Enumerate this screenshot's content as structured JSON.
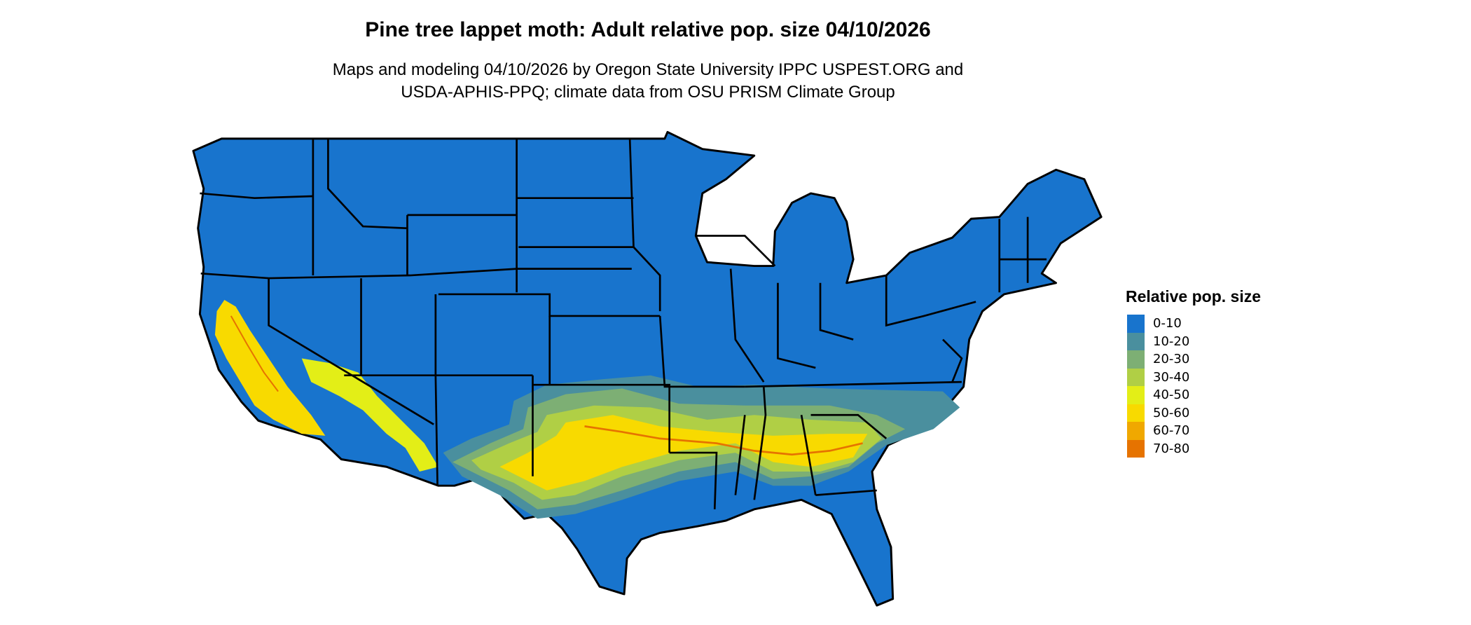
{
  "title": "Pine tree lappet moth: Adult relative pop. size 04/10/2026",
  "subtitle_line1": "Maps and modeling 04/10/2026 by Oregon State University IPPC USPEST.ORG and",
  "subtitle_line2": "USDA-APHIS-PPQ; climate data from OSU PRISM Climate Group",
  "legend": {
    "title": "Relative pop. size",
    "items": [
      {
        "label": "0-10",
        "color": "#1874CD"
      },
      {
        "label": "10-20",
        "color": "#4A8F9E"
      },
      {
        "label": "20-30",
        "color": "#7DAF74"
      },
      {
        "label": "30-40",
        "color": "#B0CF45"
      },
      {
        "label": "40-50",
        "color": "#E3EE17"
      },
      {
        "label": "50-60",
        "color": "#F8DA00"
      },
      {
        "label": "60-70",
        "color": "#F0A800"
      },
      {
        "label": "70-80",
        "color": "#E67300"
      }
    ]
  },
  "map": {
    "region": "Contiguous United States",
    "border_color": "#000000"
  }
}
